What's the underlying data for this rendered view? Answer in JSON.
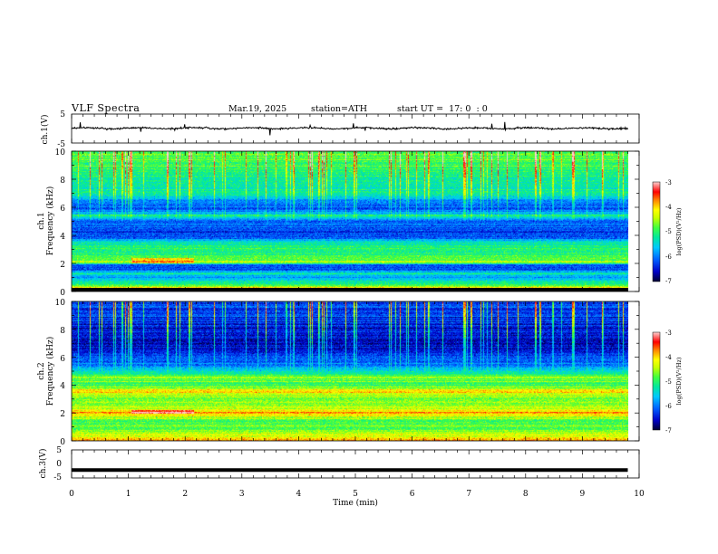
{
  "header": {
    "title": "VLF Spectra",
    "date": "Mar.19, 2025",
    "station": "station=ATH",
    "start": "start UT =  17: 0  : 0"
  },
  "chart_data": [
    {
      "type": "line",
      "panel": "ch1-waveform",
      "ylabel": "ch.1(V)",
      "ytick_labels": [
        "5",
        "-5"
      ],
      "ylim": [
        -5,
        5
      ],
      "xlim": [
        0,
        10
      ],
      "x_extent": 9.8,
      "baseline": 0.1,
      "noise_amplitude": 0.35,
      "color": "#000000"
    },
    {
      "type": "heatmap",
      "panel": "ch1-spectrogram",
      "ylabel_top": "ch.1",
      "ylabel": "Frequency (kHz)",
      "ytick_labels": [
        "0",
        "2",
        "4",
        "6",
        "8",
        "10"
      ],
      "ylim": [
        0,
        10
      ],
      "xlim": [
        0,
        10
      ],
      "x_extent": 9.8,
      "colormap": [
        "#000033",
        "#0000c8",
        "#0060ff",
        "#00c8ff",
        "#00e8a0",
        "#40ff40",
        "#c8ff00",
        "#ffff00",
        "#ff8000",
        "#ff0000",
        "#ffd0d0"
      ],
      "colorbar": {
        "label": "log(PSD)(V²/Hz)",
        "min": -7,
        "max": -3,
        "tick_labels": [
          "-3",
          "-4",
          "-5",
          "-6",
          "-7"
        ]
      },
      "frequency_profile_log_psd": [
        [
          0.0,
          -3.6
        ],
        [
          0.3,
          -4.6
        ],
        [
          0.6,
          -5.3
        ],
        [
          0.9,
          -6.0
        ],
        [
          1.2,
          -5.3
        ],
        [
          1.5,
          -6.3
        ],
        [
          1.8,
          -6.1
        ],
        [
          2.0,
          -4.5
        ],
        [
          2.2,
          -4.9
        ],
        [
          2.6,
          -5.0
        ],
        [
          3.0,
          -5.1
        ],
        [
          3.4,
          -5.2
        ],
        [
          3.8,
          -6.2
        ],
        [
          4.2,
          -6.3
        ],
        [
          4.6,
          -6.0
        ],
        [
          5.0,
          -6.2
        ],
        [
          5.4,
          -5.2
        ],
        [
          5.8,
          -6.2
        ],
        [
          6.2,
          -6.0
        ],
        [
          6.6,
          -5.7
        ],
        [
          7.0,
          -5.2
        ],
        [
          7.6,
          -5.3
        ],
        [
          8.2,
          -5.2
        ],
        [
          8.8,
          -5.0
        ],
        [
          9.4,
          -4.8
        ],
        [
          10.0,
          -4.8
        ]
      ]
    },
    {
      "type": "heatmap",
      "panel": "ch2-spectrogram",
      "ylabel_top": "ch.2",
      "ylabel": "Frequency (kHz)",
      "ytick_labels": [
        "0",
        "2",
        "4",
        "6",
        "8",
        "10"
      ],
      "ylim": [
        0,
        10
      ],
      "xlim": [
        0,
        10
      ],
      "x_extent": 9.8,
      "colorbar": {
        "label": "log(PSD)(V²/Hz)",
        "min": -7,
        "max": -3,
        "tick_labels": [
          "-3",
          "-4",
          "-5",
          "-6",
          "-7"
        ]
      },
      "frequency_profile_log_psd": [
        [
          0.0,
          -3.8
        ],
        [
          0.3,
          -4.3
        ],
        [
          0.7,
          -4.7
        ],
        [
          1.0,
          -4.9
        ],
        [
          1.5,
          -4.6
        ],
        [
          2.0,
          -3.9
        ],
        [
          2.4,
          -4.5
        ],
        [
          3.0,
          -4.8
        ],
        [
          3.5,
          -4.0
        ],
        [
          4.0,
          -5.0
        ],
        [
          4.5,
          -4.6
        ],
        [
          5.0,
          -5.5
        ],
        [
          5.5,
          -6.0
        ],
        [
          6.0,
          -6.3
        ],
        [
          6.5,
          -6.5
        ],
        [
          7.0,
          -6.6
        ],
        [
          8.0,
          -6.5
        ],
        [
          9.0,
          -6.3
        ],
        [
          10.0,
          -6.2
        ]
      ]
    },
    {
      "type": "line",
      "panel": "ch3-waveform",
      "ylabel": "ch.3(V)",
      "ytick_labels": [
        "5",
        "0",
        "-5"
      ],
      "ylim": [
        -5,
        5
      ],
      "xlim": [
        0,
        10
      ],
      "x_extent": 9.8,
      "baseline": -2.2,
      "noise_amplitude": 0.0,
      "color": "#000000",
      "xlabel": "Time (min)",
      "xtick_labels": [
        "0",
        "1",
        "2",
        "3",
        "4",
        "5",
        "6",
        "7",
        "8",
        "9",
        "10"
      ]
    }
  ]
}
